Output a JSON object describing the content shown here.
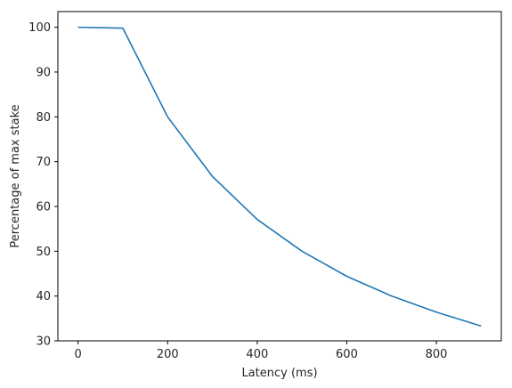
{
  "chart_data": {
    "type": "line",
    "title": "",
    "xlabel": "Latency (ms)",
    "ylabel": "Percentage of max stake",
    "xlim": [
      -45,
      945
    ],
    "ylim": [
      30,
      103.5
    ],
    "xticks": [
      0,
      200,
      400,
      600,
      800
    ],
    "yticks": [
      30,
      40,
      50,
      60,
      70,
      80,
      90,
      100
    ],
    "grid": false,
    "legend": "none",
    "series": [
      {
        "color": "#1f77b4",
        "x": [
          0,
          100,
          200,
          300,
          400,
          500,
          600,
          700,
          800,
          900
        ],
        "y": [
          100,
          99.8,
          80,
          66.7,
          57.1,
          50,
          44.4,
          40,
          36.4,
          33.3
        ]
      }
    ]
  }
}
